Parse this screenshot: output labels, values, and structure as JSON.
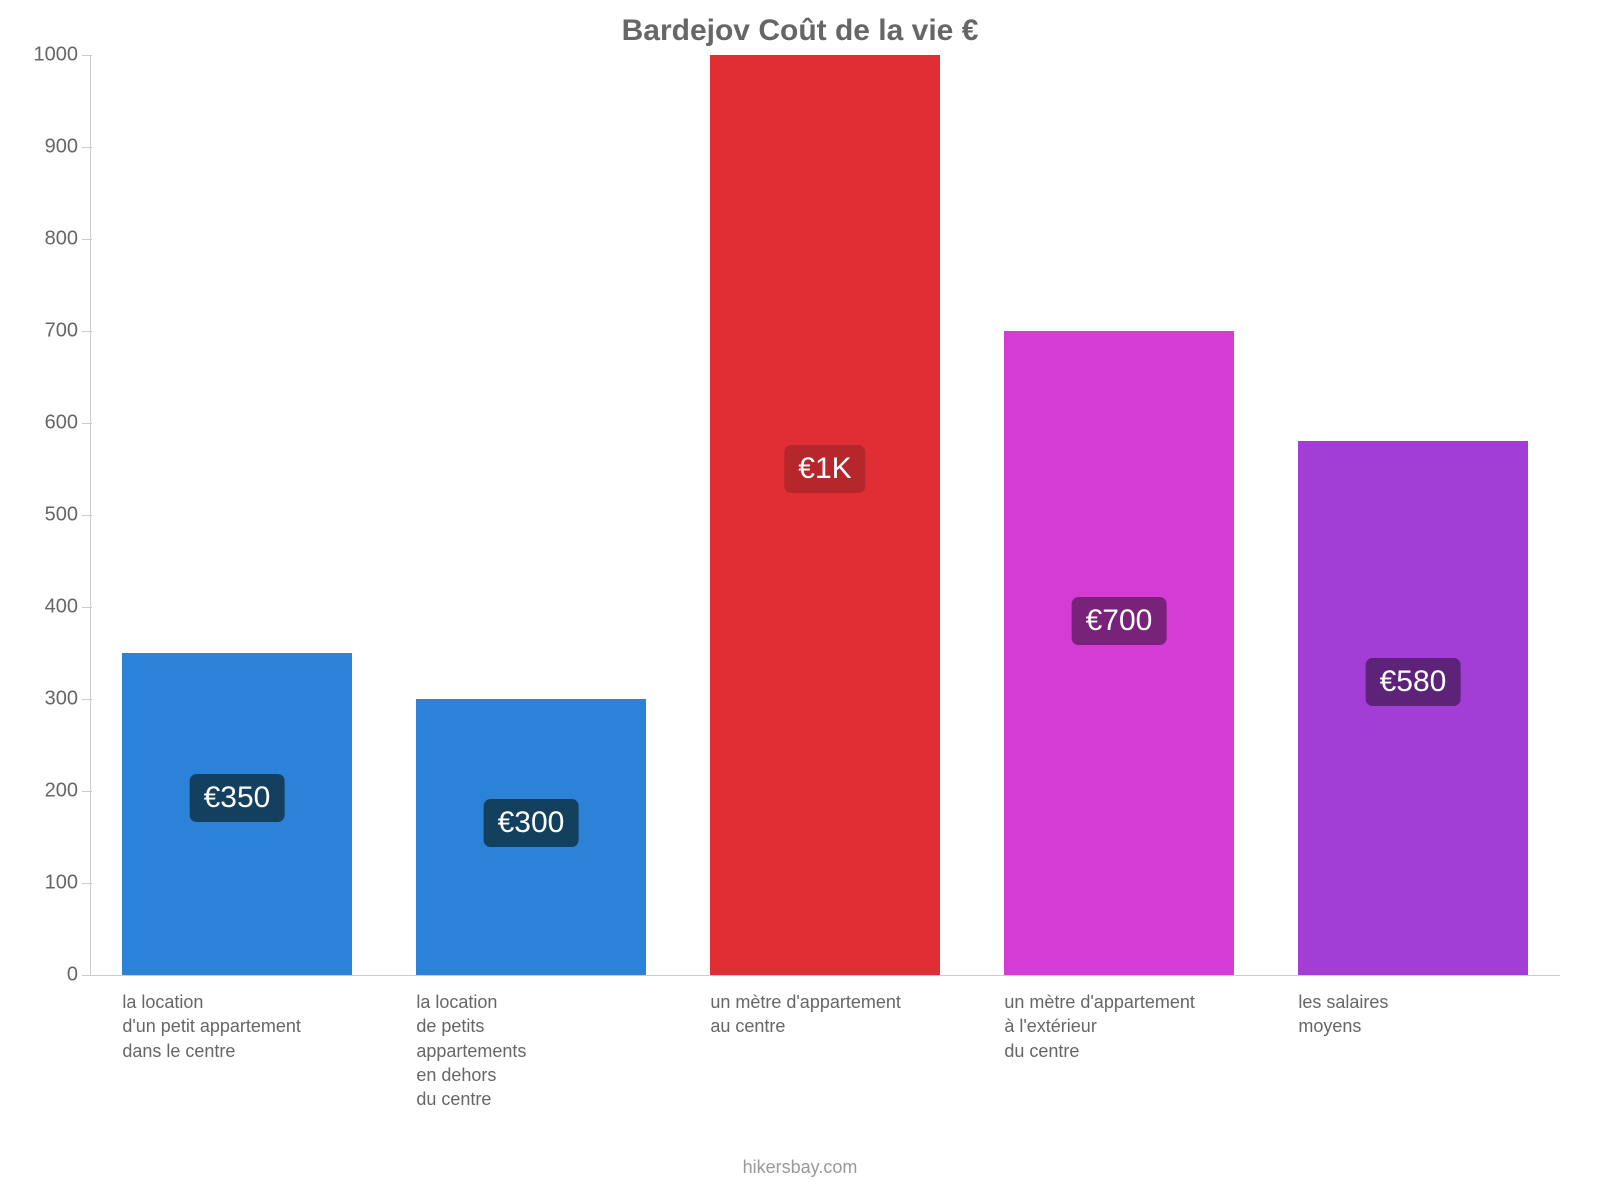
{
  "chart": {
    "type": "bar",
    "title": "Bardejov Coût de la vie €",
    "title_fontsize": 30,
    "title_color": "#666666",
    "background_color": "#ffffff",
    "footer": "hikersbay.com",
    "footer_color": "#999999",
    "axis_color": "#cccccc",
    "tick_label_color": "#666666",
    "tick_label_fontsize": 20,
    "x_label_fontsize": 18,
    "ylim": [
      0,
      1000
    ],
    "ytick_step": 100,
    "yticks": [
      0,
      100,
      200,
      300,
      400,
      500,
      600,
      700,
      800,
      900,
      1000
    ],
    "bar_width_ratio": 0.78,
    "categories": [
      "la location\nd'un petit appartement\ndans le centre",
      "la location\nde petits\nappartements\nen dehors\ndu centre",
      "un mètre d'appartement\nau centre",
      "un mètre d'appartement\nà l'extérieur\ndu centre",
      "les salaires\nmoyens"
    ],
    "values": [
      350,
      300,
      1000,
      700,
      580
    ],
    "value_labels": [
      "€350",
      "€300",
      "€1K",
      "€700",
      "€580"
    ],
    "bar_colors": [
      "#2c82d6",
      "#2c82d6",
      "#e02e34",
      "#d53cd5",
      "#a23ed5"
    ],
    "badge_colors": [
      "#14405f",
      "#14405f",
      "#b6272b",
      "#792279",
      "#5c2379"
    ],
    "badge_text_color": "#ffffff",
    "badge_fontsize": 30
  }
}
